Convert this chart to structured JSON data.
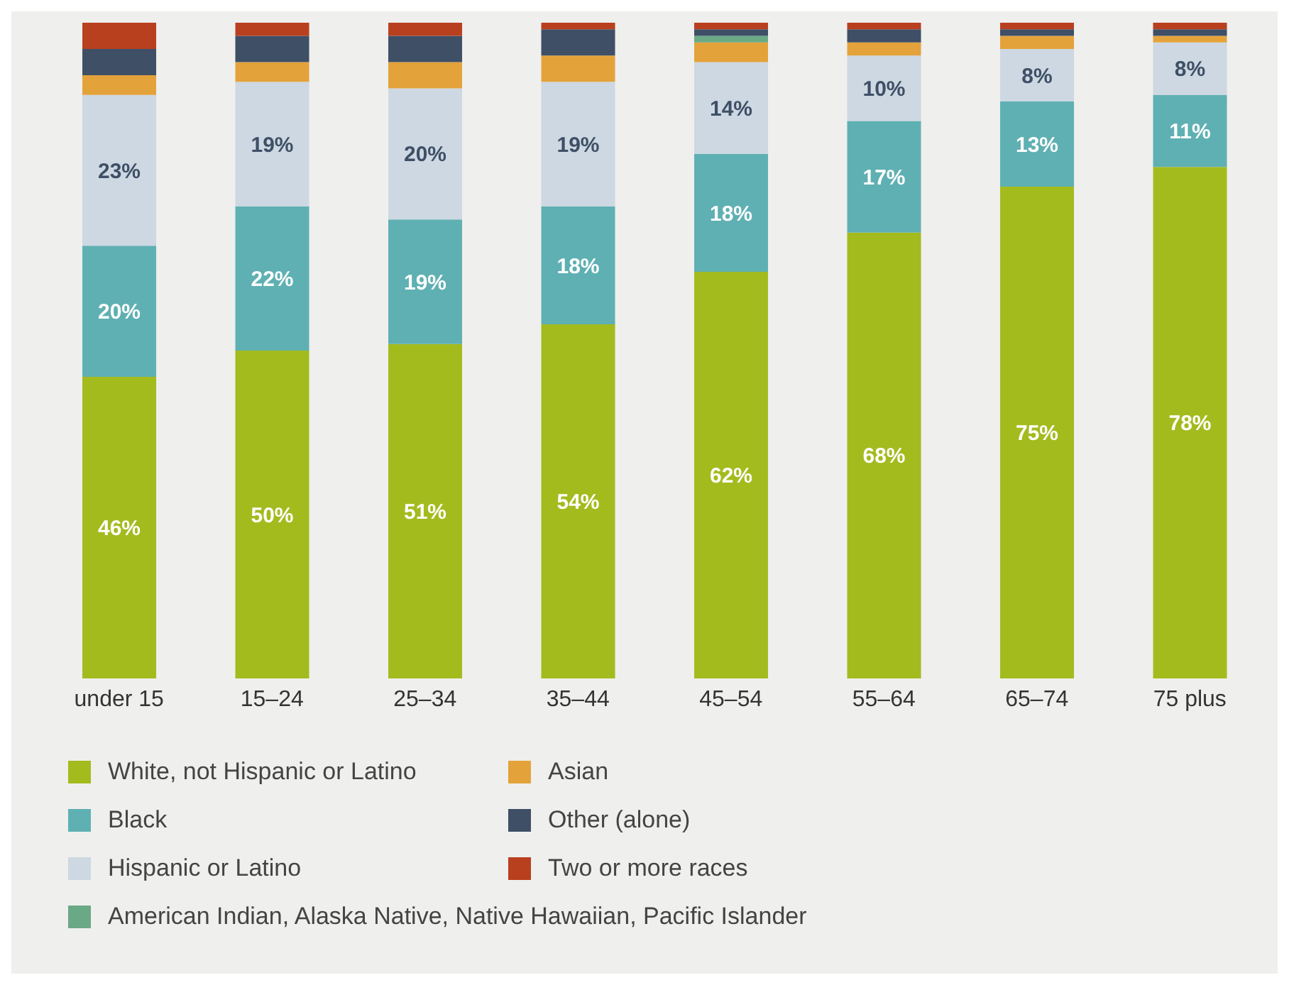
{
  "chart_data": {
    "type": "bar",
    "stacked": true,
    "categories": [
      "under 15",
      "15–24",
      "25–34",
      "35–44",
      "45–54",
      "55–64",
      "65–74",
      "75 plus"
    ],
    "ylim": [
      0,
      100
    ],
    "legend": "bottom",
    "series": [
      {
        "name": "White, not Hispanic or Latino",
        "color": "#a4bb1e",
        "values": [
          46,
          50,
          51,
          54,
          62,
          68,
          75,
          78
        ],
        "value_labels": [
          "46%",
          "50%",
          "51%",
          "54%",
          "62%",
          "68%",
          "75%",
          "78%"
        ]
      },
      {
        "name": "Black",
        "color": "#5fb0b3",
        "values": [
          20,
          22,
          19,
          18,
          18,
          17,
          13,
          11
        ],
        "value_labels": [
          "20%",
          "22%",
          "19%",
          "18%",
          "18%",
          "17%",
          "13%",
          "11%"
        ]
      },
      {
        "name": "Hispanic or Latino",
        "color": "#cdd8e2",
        "values": [
          23,
          19,
          20,
          19,
          14,
          10,
          8,
          8
        ],
        "value_labels": [
          "23%",
          "19%",
          "20%",
          "19%",
          "14%",
          "10%",
          "8%",
          "8%"
        ]
      },
      {
        "name": "Asian",
        "color": "#e4a23a",
        "values": [
          3,
          3,
          4,
          4,
          3,
          2,
          2,
          1
        ]
      },
      {
        "name": "American Indian, Alaska Native, Native Hawaiian, Pacific Islander",
        "color": "#6aa985",
        "values": [
          0,
          0,
          0,
          0,
          1,
          0,
          0,
          0
        ]
      },
      {
        "name": "Other (alone)",
        "color": "#3e4f66",
        "values": [
          4,
          4,
          4,
          4,
          1,
          2,
          1,
          1
        ]
      },
      {
        "name": "Two or more races",
        "color": "#b8401f",
        "values": [
          4,
          2,
          2,
          1,
          1,
          1,
          1,
          1
        ]
      }
    ]
  }
}
